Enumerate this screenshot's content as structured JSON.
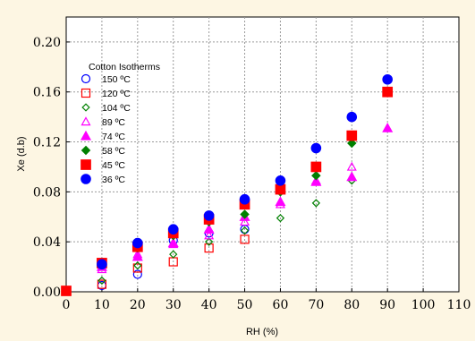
{
  "chart_data": {
    "type": "scatter",
    "xlabel": "RH (%)",
    "ylabel": "Xe (d.b)",
    "xlim": [
      0,
      110
    ],
    "ylim": [
      0,
      0.22
    ],
    "xticks": [
      0,
      10,
      20,
      30,
      40,
      50,
      60,
      70,
      80,
      90,
      100,
      110
    ],
    "yticks": [
      0.0,
      0.04,
      0.08,
      0.12,
      0.16,
      0.2
    ],
    "ytick_labels": [
      "0.00",
      "0.04",
      "0.08",
      "0.12",
      "0.16",
      "0.20"
    ],
    "grid": true,
    "legend_title": "Cotton Isotherms",
    "legend_position": "top-left",
    "series": [
      {
        "name": "150 ºC",
        "marker": "circle-open",
        "color": "#0000ff",
        "x": [
          10,
          20,
          30,
          40,
          50
        ],
        "y": [
          0.005,
          0.014,
          0.041,
          0.047,
          0.05
        ]
      },
      {
        "name": "120 ºC",
        "marker": "square-open",
        "color": "#ff0000",
        "x": [
          10,
          20,
          30,
          40,
          50
        ],
        "y": [
          0.006,
          0.019,
          0.024,
          0.035,
          0.042
        ]
      },
      {
        "name": "104 ºC",
        "marker": "diamond-open",
        "color": "#008000",
        "x": [
          10,
          20,
          30,
          40,
          50,
          60,
          70,
          80
        ],
        "y": [
          0.009,
          0.021,
          0.03,
          0.04,
          0.049,
          0.059,
          0.071,
          0.089
        ]
      },
      {
        "name": "89 ºC",
        "marker": "triangle-open",
        "color": "#ff00ff",
        "x": [
          10,
          20,
          30,
          40,
          50,
          60,
          70,
          80
        ],
        "y": [
          0.018,
          0.03,
          0.038,
          0.045,
          0.056,
          0.07,
          0.089,
          0.1
        ]
      },
      {
        "name": "74 ºC",
        "marker": "triangle-filled",
        "color": "#ff00ff",
        "x": [
          10,
          20,
          30,
          40,
          50,
          60,
          70,
          80,
          90
        ],
        "y": [
          0.02,
          0.028,
          0.039,
          0.05,
          0.06,
          0.072,
          0.088,
          0.092,
          0.131
        ]
      },
      {
        "name": "58 ºC",
        "marker": "diamond-filled",
        "color": "#008000",
        "x": [
          10,
          20,
          30,
          40,
          50,
          60,
          70,
          80
        ],
        "y": [
          0.022,
          0.035,
          0.045,
          0.056,
          0.062,
          0.08,
          0.093,
          0.119
        ]
      },
      {
        "name": "45 ºC",
        "marker": "square-filled",
        "color": "#ff0000",
        "x": [
          10,
          20,
          30,
          40,
          50,
          60,
          70,
          80,
          90
        ],
        "y": [
          0.023,
          0.036,
          0.047,
          0.058,
          0.07,
          0.082,
          0.1,
          0.125,
          0.16
        ]
      },
      {
        "name": "36 ºC",
        "marker": "circle-filled",
        "color": "#0000ff",
        "x": [
          10,
          20,
          30,
          40,
          50,
          60,
          70,
          80,
          90
        ],
        "y": [
          0.022,
          0.039,
          0.05,
          0.061,
          0.074,
          0.089,
          0.115,
          0.14,
          0.17
        ]
      }
    ],
    "extra_points": [
      {
        "x": 0,
        "y": 0.0,
        "marker": "square-filled",
        "color": "#ff0000"
      }
    ]
  }
}
